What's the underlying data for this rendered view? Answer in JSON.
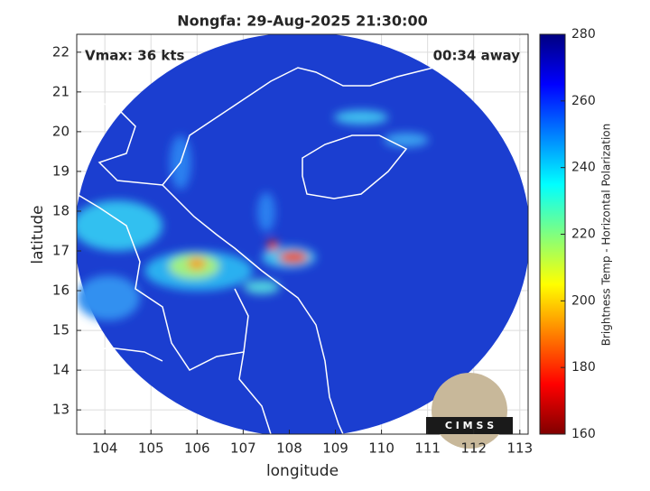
{
  "chart_data": {
    "type": "map",
    "title": "Nongfa: 29-Aug-2025 21:30:00",
    "xlabel": "longitude",
    "ylabel": "latitude",
    "annotations": [
      "Vmax: 36 kts",
      "00:34 away"
    ],
    "logo": "C I M S S",
    "xlim": [
      103.39,
      113.18
    ],
    "xticks": [
      104,
      105,
      106,
      107,
      108,
      109,
      110,
      111,
      112,
      113
    ],
    "ylim": [
      12.39,
      22.45
    ],
    "yticks": [
      13,
      14,
      15,
      16,
      17,
      18,
      19,
      20,
      21,
      22
    ],
    "grid": true,
    "colorbar": {
      "label": "Brightness Temp - Horizontal Polarization",
      "lim": [
        160,
        280
      ],
      "ticks": [
        160,
        180,
        200,
        220,
        240,
        260,
        280
      ]
    }
  }
}
